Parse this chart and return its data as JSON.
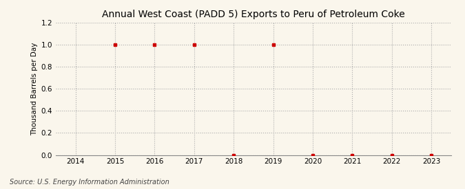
{
  "title": "Annual West Coast (PADD 5) Exports to Peru of Petroleum Coke",
  "ylabel": "Thousand Barrels per Day",
  "source": "Source: U.S. Energy Information Administration",
  "x_years": [
    2014,
    2015,
    2016,
    2017,
    2018,
    2019,
    2020,
    2021,
    2022,
    2023
  ],
  "x_min": 2013.5,
  "x_max": 2023.5,
  "y_min": 0.0,
  "y_max": 1.2,
  "y_ticks": [
    0.0,
    0.2,
    0.4,
    0.6,
    0.8,
    1.0,
    1.2
  ],
  "data_x": [
    2015,
    2016,
    2017,
    2018,
    2019,
    2020,
    2021,
    2022,
    2023
  ],
  "data_y": [
    1.0,
    1.0,
    1.0,
    0.0,
    1.0,
    0.0,
    0.0,
    0.0,
    0.0
  ],
  "marker_color": "#cc0000",
  "marker_style": "s",
  "marker_size": 3.5,
  "background_color": "#faf6ec",
  "grid_color": "#aaaaaa",
  "grid_style": ":",
  "grid_linewidth": 0.8,
  "title_fontsize": 10,
  "title_fontweight": "normal",
  "label_fontsize": 7.5,
  "tick_fontsize": 7.5,
  "source_fontsize": 7
}
